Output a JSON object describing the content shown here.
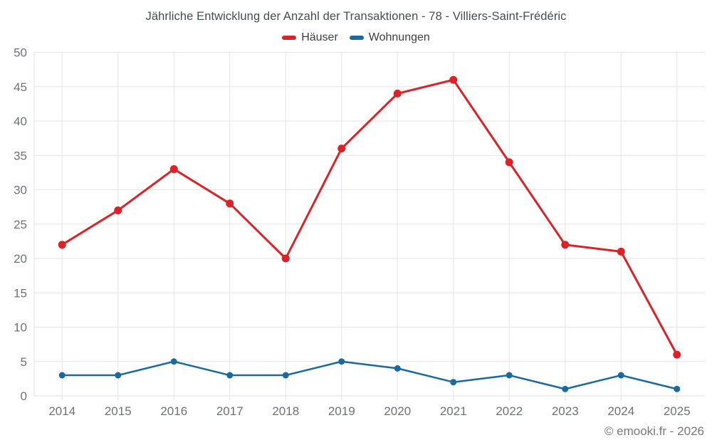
{
  "header": {
    "title": "Jährliche Entwicklung der Anzahl der Transaktionen - 78 - Villiers-Saint-Frédéric"
  },
  "footer": {
    "credit": "© emooki.fr - 2026"
  },
  "colors": {
    "hauser": "#dc2127",
    "wohnungen": "#186a9f",
    "grid": "#e6e6e6",
    "axis_border": "#e0e0e0",
    "tick_label": "#6e7175"
  },
  "chart_data": {
    "type": "line",
    "title": "Jährliche Entwicklung der Anzahl der Transaktionen - 78 - Villiers-Saint-Frédéric",
    "categories": [
      "2014",
      "2015",
      "2016",
      "2017",
      "2018",
      "2019",
      "2020",
      "2021",
      "2022",
      "2023",
      "2024",
      "2025"
    ],
    "series": [
      {
        "name": "Häuser",
        "color": "#dc2127",
        "values": [
          22,
          27,
          33,
          28,
          20,
          36,
          44,
          46,
          34,
          22,
          21,
          6
        ]
      },
      {
        "name": "Wohnungen",
        "color": "#186a9f",
        "values": [
          3,
          3,
          5,
          3,
          3,
          5,
          4,
          2,
          3,
          1,
          3,
          1
        ]
      }
    ],
    "xlabel": "",
    "ylabel": "",
    "ylim": [
      0,
      50
    ],
    "yticks": [
      0,
      5,
      10,
      15,
      20,
      25,
      30,
      35,
      40,
      45,
      50
    ],
    "grid": true,
    "legend_position": "top"
  }
}
